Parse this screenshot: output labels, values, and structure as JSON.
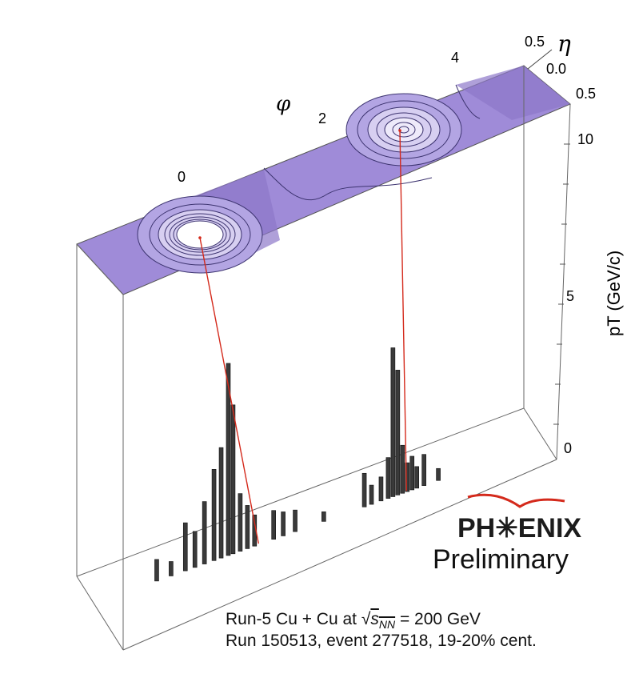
{
  "chart_data": {
    "type": "lego",
    "xlabel": "φ",
    "ylabel": "pT (GeV/c)",
    "zlabel": "η",
    "phi_ticks": [
      "0",
      "2",
      "4"
    ],
    "eta_ticks": [
      "0.5",
      "0.0",
      "0.5"
    ],
    "pt_ticks": [
      "0",
      "5",
      "10"
    ],
    "ylim": [
      0,
      12
    ],
    "jets": [
      {
        "phi": 0.2,
        "pt": 12
      },
      {
        "phi": 3.3,
        "pt": 12
      }
    ],
    "towers": [
      {
        "phi": -1.9,
        "pt": 0.9
      },
      {
        "phi": -1.6,
        "pt": 0.6
      },
      {
        "phi": -1.3,
        "pt": 2.0
      },
      {
        "phi": -1.1,
        "pt": 1.5
      },
      {
        "phi": -0.9,
        "pt": 2.6
      },
      {
        "phi": -0.7,
        "pt": 3.8
      },
      {
        "phi": -0.55,
        "pt": 4.6
      },
      {
        "phi": -0.4,
        "pt": 8.0
      },
      {
        "phi": -0.3,
        "pt": 6.2
      },
      {
        "phi": -0.15,
        "pt": 2.4
      },
      {
        "phi": 0.0,
        "pt": 1.8
      },
      {
        "phi": 0.15,
        "pt": 1.3
      },
      {
        "phi": 0.55,
        "pt": 1.2
      },
      {
        "phi": 0.75,
        "pt": 1.0
      },
      {
        "phi": 1.0,
        "pt": 0.9
      },
      {
        "phi": 1.6,
        "pt": 0.4
      },
      {
        "phi": 2.45,
        "pt": 1.4
      },
      {
        "phi": 2.6,
        "pt": 0.8
      },
      {
        "phi": 2.8,
        "pt": 1.0
      },
      {
        "phi": 2.95,
        "pt": 1.7
      },
      {
        "phi": 3.05,
        "pt": 6.2
      },
      {
        "phi": 3.15,
        "pt": 5.2
      },
      {
        "phi": 3.25,
        "pt": 2.0
      },
      {
        "phi": 3.35,
        "pt": 1.2
      },
      {
        "phi": 3.45,
        "pt": 1.4
      },
      {
        "phi": 3.55,
        "pt": 0.9
      },
      {
        "phi": 3.7,
        "pt": 1.3
      },
      {
        "phi": 4.0,
        "pt": 0.5
      }
    ],
    "grid": false
  },
  "logo": {
    "text": "PH✳ENIX"
  },
  "prelim": "Preliminary",
  "caption": {
    "line1_a": "Run-5 Cu + Cu at ",
    "line1_s": "s",
    "line1_sub": "NN",
    "line1_b": " = 200 GeV",
    "line2": "Run 150513, event 277518, 19-20% cent."
  },
  "colors": {
    "plane": "#9b86d6",
    "contour": "#4a3f7a",
    "tower": "#3a3a3a",
    "jet": "#d42a1c"
  }
}
